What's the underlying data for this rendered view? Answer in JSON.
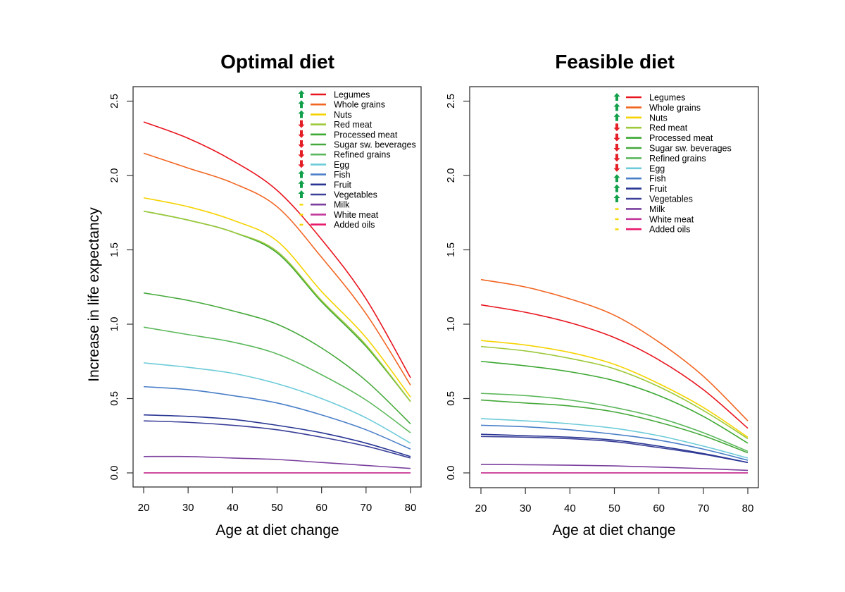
{
  "chart_data": [
    {
      "type": "line",
      "title": "Optimal diet",
      "xlabel": "Age at diet change",
      "ylabel": "Increase in life expectancy",
      "xlim": [
        17.5,
        82.5
      ],
      "ylim": [
        -0.1,
        2.62
      ],
      "xticks": [
        20,
        30,
        40,
        50,
        60,
        70,
        80
      ],
      "yticks": [
        0.0,
        0.5,
        1.0,
        1.5,
        2.0,
        2.5
      ],
      "ytick_labels": [
        "0.0",
        "0.5",
        "1.0",
        "1.5",
        "2.0",
        "2.5"
      ],
      "grid": false,
      "legend_position": "top-right",
      "x": [
        20,
        30,
        40,
        50,
        60,
        70,
        80
      ],
      "series": [
        {
          "name": "Legumes",
          "color": "#e8141e",
          "direction": "up",
          "values": [
            2.36,
            2.25,
            2.1,
            1.9,
            1.57,
            1.17,
            0.64
          ]
        },
        {
          "name": "Whole grains",
          "color": "#f26522",
          "direction": "up",
          "values": [
            2.15,
            2.05,
            1.95,
            1.79,
            1.45,
            1.07,
            0.59
          ]
        },
        {
          "name": "Nuts",
          "color": "#f5d300",
          "direction": "up",
          "values": [
            1.85,
            1.79,
            1.7,
            1.56,
            1.22,
            0.91,
            0.51
          ]
        },
        {
          "name": "Red meat",
          "color": "#9dc93a",
          "direction": "down",
          "values": [
            1.76,
            1.7,
            1.62,
            1.49,
            1.16,
            0.86,
            0.48
          ]
        },
        {
          "name": "Processed meat",
          "color": "#3da833",
          "direction": "down",
          "values": [
            1.76,
            1.7,
            1.62,
            1.48,
            1.15,
            0.85,
            0.48
          ]
        },
        {
          "name": "Sugar  sw. beverages",
          "color": "#45a83a",
          "direction": "down",
          "values": [
            1.21,
            1.16,
            1.09,
            1.0,
            0.84,
            0.62,
            0.33
          ]
        },
        {
          "name": "Refined grains",
          "color": "#5cb85c",
          "direction": "down",
          "values": [
            0.98,
            0.93,
            0.88,
            0.8,
            0.66,
            0.49,
            0.27
          ]
        },
        {
          "name": "Egg",
          "color": "#6ccbd8",
          "direction": "down",
          "values": [
            0.74,
            0.71,
            0.67,
            0.6,
            0.5,
            0.37,
            0.2
          ]
        },
        {
          "name": "Fish",
          "color": "#4a7fc8",
          "direction": "up",
          "values": [
            0.58,
            0.56,
            0.52,
            0.47,
            0.39,
            0.29,
            0.16
          ]
        },
        {
          "name": "Fruit",
          "color": "#283593",
          "direction": "up",
          "values": [
            0.39,
            0.38,
            0.36,
            0.32,
            0.27,
            0.2,
            0.11
          ]
        },
        {
          "name": "Vegetables",
          "color": "#3a3f98",
          "direction": "up",
          "values": [
            0.35,
            0.34,
            0.32,
            0.29,
            0.24,
            0.18,
            0.1
          ]
        },
        {
          "name": "Milk",
          "color": "#7b3f9e",
          "direction": "neutral",
          "values": [
            0.11,
            0.11,
            0.1,
            0.09,
            0.07,
            0.05,
            0.03
          ]
        },
        {
          "name": "White meat",
          "color": "#c2379a",
          "direction": "neutral",
          "values": [
            0.0,
            0.0,
            0.0,
            0.0,
            0.0,
            0.0,
            0.0
          ]
        },
        {
          "name": "Added oils",
          "color": "#e8196b",
          "direction": "neutral",
          "values": [
            0.0,
            0.0,
            0.0,
            0.0,
            0.0,
            0.0,
            0.0
          ]
        }
      ]
    },
    {
      "type": "line",
      "title": "Feasible diet",
      "xlabel": "Age at diet change",
      "ylabel": "",
      "xlim": [
        17.5,
        82.5
      ],
      "ylim": [
        -0.1,
        2.62
      ],
      "xticks": [
        20,
        30,
        40,
        50,
        60,
        70,
        80
      ],
      "yticks": [
        0.0,
        0.5,
        1.0,
        1.5,
        2.0,
        2.5
      ],
      "ytick_labels": [
        "0.0",
        "0.5",
        "1.0",
        "1.5",
        "2.0",
        "2.5"
      ],
      "grid": false,
      "legend_position": "top-right",
      "x": [
        20,
        30,
        40,
        50,
        60,
        70,
        80
      ],
      "series": [
        {
          "name": "Legumes",
          "color": "#e8141e",
          "direction": "up",
          "values": [
            1.13,
            1.08,
            1.01,
            0.91,
            0.76,
            0.56,
            0.3
          ]
        },
        {
          "name": "Whole grains",
          "color": "#f26522",
          "direction": "up",
          "values": [
            1.3,
            1.25,
            1.17,
            1.06,
            0.88,
            0.65,
            0.35
          ]
        },
        {
          "name": "Nuts",
          "color": "#f5d300",
          "direction": "up",
          "values": [
            0.89,
            0.86,
            0.81,
            0.73,
            0.6,
            0.44,
            0.24
          ]
        },
        {
          "name": "Red meat",
          "color": "#9dc93a",
          "direction": "down",
          "values": [
            0.85,
            0.82,
            0.77,
            0.7,
            0.58,
            0.42,
            0.23
          ]
        },
        {
          "name": "Processed meat",
          "color": "#3da833",
          "direction": "down",
          "values": [
            0.75,
            0.72,
            0.68,
            0.62,
            0.52,
            0.38,
            0.2
          ]
        },
        {
          "name": "Sugar  sw. beverages",
          "color": "#45a83a",
          "direction": "down",
          "values": [
            0.49,
            0.47,
            0.45,
            0.41,
            0.34,
            0.25,
            0.135
          ]
        },
        {
          "name": "Refined grains",
          "color": "#5cb85c",
          "direction": "down",
          "values": [
            0.535,
            0.52,
            0.49,
            0.44,
            0.37,
            0.27,
            0.145
          ]
        },
        {
          "name": "Egg",
          "color": "#6ccbd8",
          "direction": "down",
          "values": [
            0.365,
            0.35,
            0.33,
            0.3,
            0.25,
            0.18,
            0.1
          ]
        },
        {
          "name": "Fish",
          "color": "#4a7fc8",
          "direction": "up",
          "values": [
            0.32,
            0.31,
            0.29,
            0.26,
            0.22,
            0.16,
            0.085
          ]
        },
        {
          "name": "Fruit",
          "color": "#283593",
          "direction": "up",
          "values": [
            0.26,
            0.25,
            0.24,
            0.22,
            0.18,
            0.13,
            0.07
          ]
        },
        {
          "name": "Vegetables",
          "color": "#3a3f98",
          "direction": "up",
          "values": [
            0.245,
            0.24,
            0.23,
            0.21,
            0.17,
            0.125,
            0.07
          ]
        },
        {
          "name": "Milk",
          "color": "#7b3f9e",
          "direction": "neutral",
          "values": [
            0.057,
            0.055,
            0.052,
            0.047,
            0.039,
            0.029,
            0.017
          ]
        },
        {
          "name": "White meat",
          "color": "#c2379a",
          "direction": "neutral",
          "values": [
            0.0,
            0.0,
            0.0,
            0.0,
            0.0,
            0.0,
            0.0
          ]
        },
        {
          "name": "Added oils",
          "color": "#e8196b",
          "direction": "neutral",
          "values": [
            0.0,
            0.0,
            0.0,
            0.0,
            0.0,
            0.0,
            0.0
          ]
        }
      ]
    }
  ],
  "indicator_colors": {
    "up": "#12a04a",
    "down": "#e41e26",
    "neutral": "#f5d800"
  }
}
